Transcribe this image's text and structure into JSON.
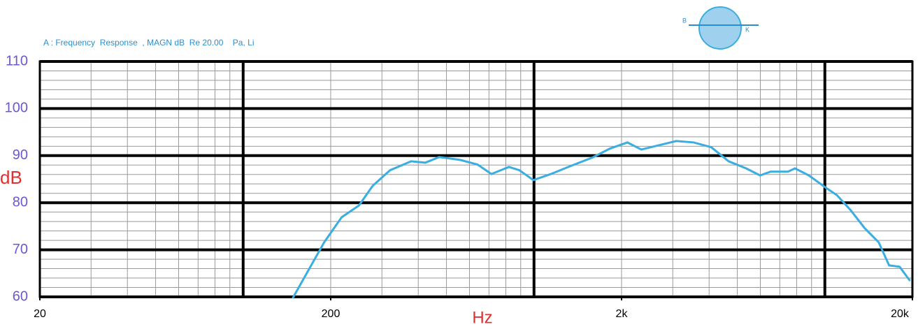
{
  "chart_data": {
    "type": "line",
    "title": "A : Frequency  Response  , MAGN dB  Re 20.00    Pa, Li",
    "y_label": "dB",
    "x_label": "Hz",
    "logo": {
      "left": "B",
      "right": "K"
    },
    "x_log": true,
    "xlim": [
      20,
      20000
    ],
    "xticks": [
      20,
      200,
      {
        "value": 2000,
        "label": "2k"
      },
      {
        "value": 20000,
        "label": "20k"
      }
    ],
    "x_major_grid": [
      100,
      1000,
      10000
    ],
    "ylim": [
      60,
      110
    ],
    "yticks": [
      60,
      70,
      80,
      90,
      100,
      110
    ],
    "grid": true,
    "series": [
      {
        "name": "Frequency Response",
        "color": "#3aaee0",
        "x": [
          148,
          165,
          190,
          218,
          250,
          279,
          320,
          378,
          423,
          472,
          557,
          640,
          714,
          820,
          891,
          995,
          1143,
          1349,
          1589,
          1825,
          2094,
          2339,
          2686,
          3084,
          3541,
          4066,
          4668,
          5360,
          5988,
          6506,
          7470,
          7893,
          8810,
          10120,
          11000,
          12270,
          13700,
          15310,
          16630,
          18070,
          19630
        ],
        "values": [
          59.7,
          64.9,
          71.6,
          76.9,
          79.4,
          83.6,
          86.9,
          88.8,
          88.5,
          89.7,
          89.1,
          88.1,
          86.1,
          87.6,
          86.9,
          84.8,
          86.1,
          87.9,
          89.6,
          91.5,
          92.8,
          91.3,
          92.2,
          93.1,
          92.8,
          91.8,
          88.8,
          87.3,
          85.8,
          86.6,
          86.6,
          87.3,
          85.8,
          83.1,
          81.6,
          78.4,
          74.6,
          71.6,
          66.7,
          66.4,
          63.4
        ]
      }
    ]
  }
}
